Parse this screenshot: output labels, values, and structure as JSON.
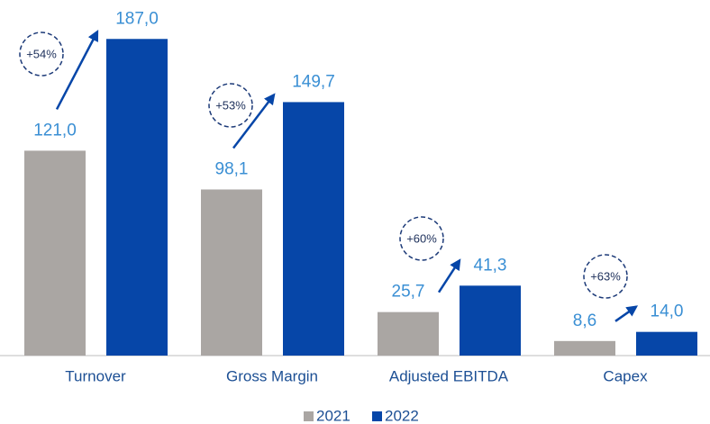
{
  "chart_data": {
    "type": "bar",
    "categories": [
      "Turnover",
      "Gross Margin",
      "Adjusted EBITDA",
      "Capex"
    ],
    "series": [
      {
        "name": "2021",
        "color": "#aaa6a3",
        "values": [
          121.0,
          98.1,
          25.7,
          8.6
        ],
        "value_labels": [
          "121,0",
          "98,1",
          "25,7",
          "8,6"
        ]
      },
      {
        "name": "2022",
        "color": "#0646a8",
        "values": [
          187.0,
          149.7,
          41.3,
          14.0
        ],
        "value_labels": [
          "187,0",
          "149,7",
          "41,3",
          "14,0"
        ]
      }
    ],
    "annotations": [
      "+54%",
      "+53%",
      "+60%",
      "+63%"
    ],
    "ylim": [
      0,
      210
    ],
    "legend": "bottom"
  }
}
